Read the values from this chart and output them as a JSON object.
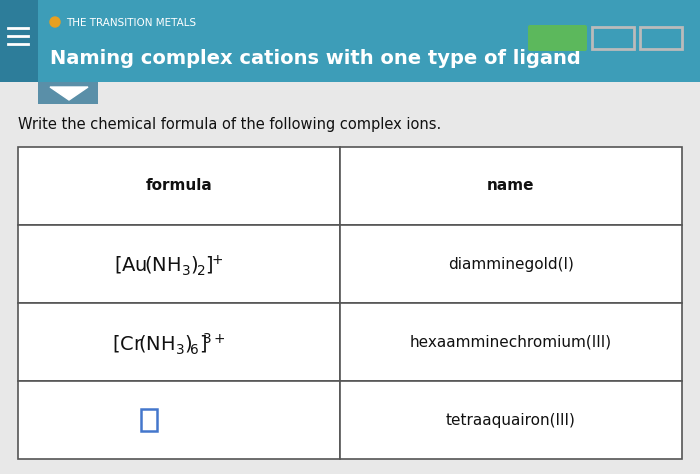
{
  "header_bg": "#3d9db8",
  "sidebar_bg": "#2d7d9a",
  "header_subtitle": "THE TRANSITION METALS",
  "header_title": "Naming complex cations with one type of ligand",
  "instruction": "Write the chemical formula of the following complex ions.",
  "col1_header": "formula",
  "col2_header": "name",
  "rows": [
    {
      "name": "diamminegold(I)"
    },
    {
      "name": "hexaamminechromium(III)"
    },
    {
      "name": "tetraaquairon(III)"
    }
  ],
  "bg_color": "#d8d8d8",
  "content_bg": "#e8e8e8",
  "white": "#ffffff",
  "border_color": "#555555",
  "orange_dot": "#e8a020",
  "green_bar": "#5cb85c",
  "gray_bar": "#bbbbbb",
  "header_text_color": "#ffffff",
  "subtitle_color": "#e8a020",
  "dropdown_bg": "#5a8fa8",
  "blue_square": "#4477cc"
}
